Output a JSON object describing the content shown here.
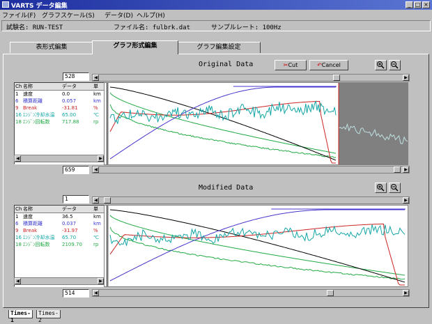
{
  "window": {
    "title": "VARTS データ編集"
  },
  "menu": [
    "ファイル(F)",
    "グラフスケール(S)",
    "データ(D)",
    "ヘルプ(H)"
  ],
  "info": {
    "test_name": "試験名: RUN-TEST",
    "file_name": "ファイル名: fulbrk.dat",
    "sample_rate": "サンプルレート: 100Hz"
  },
  "tabs": [
    "表形式編集",
    "グラフ形式編集",
    "グラフ編集設定"
  ],
  "active_tab": 1,
  "original": {
    "title": "Original Data",
    "start_index": "528",
    "end_index": "659",
    "cut_label": "Cut",
    "cancel_label": "Cancel",
    "headers": [
      "Ch",
      "名称",
      "データ",
      "単"
    ],
    "rows": [
      {
        "ch": "1",
        "name": "速度",
        "value": "0.0",
        "unit": "km",
        "color": "#000000"
      },
      {
        "ch": "6",
        "name": "積算距離",
        "value": "0.057",
        "unit": "km",
        "color": "#3333cc"
      },
      {
        "ch": "9",
        "name": "Break",
        "value": "-31.81",
        "unit": "%",
        "color": "#cc2222"
      },
      {
        "ch": "16",
        "name": "ｴﾝｼﾞﾝ冷却水温",
        "value": "65.00",
        "unit": "℃",
        "color": "#11a5a5"
      },
      {
        "ch": "18",
        "name": "ｴﾝｼﾞﾝ回転数",
        "value": "717.88",
        "unit": "rp",
        "color": "#22aa44"
      }
    ]
  },
  "modified": {
    "title": "Modified Data",
    "start_index": "1",
    "end_index": "514",
    "headers": [
      "Ch",
      "名称",
      "データ",
      "単"
    ],
    "rows": [
      {
        "ch": "1",
        "name": "速度",
        "value": "36.5",
        "unit": "km",
        "color": "#000000"
      },
      {
        "ch": "6",
        "name": "積算距離",
        "value": "0.037",
        "unit": "km",
        "color": "#3333cc"
      },
      {
        "ch": "9",
        "name": "Break",
        "value": "-31.97",
        "unit": "%",
        "color": "#cc2222"
      },
      {
        "ch": "16",
        "name": "ｴﾝｼﾞﾝ冷却水温",
        "value": "65.70",
        "unit": "℃",
        "color": "#11a5a5"
      },
      {
        "ch": "18",
        "name": "ｴﾝｼﾞﾝ回転数",
        "value": "2109.70",
        "unit": "rp",
        "color": "#22aa44"
      }
    ]
  },
  "bottom_tabs": [
    "Times-1",
    "Times-2"
  ],
  "colors": {
    "speed": "#000000",
    "distance": "#4433cc",
    "break": "#cc2222",
    "water": "#11a5a5",
    "rpm": "#22aa44",
    "cut_region": "#808080"
  }
}
